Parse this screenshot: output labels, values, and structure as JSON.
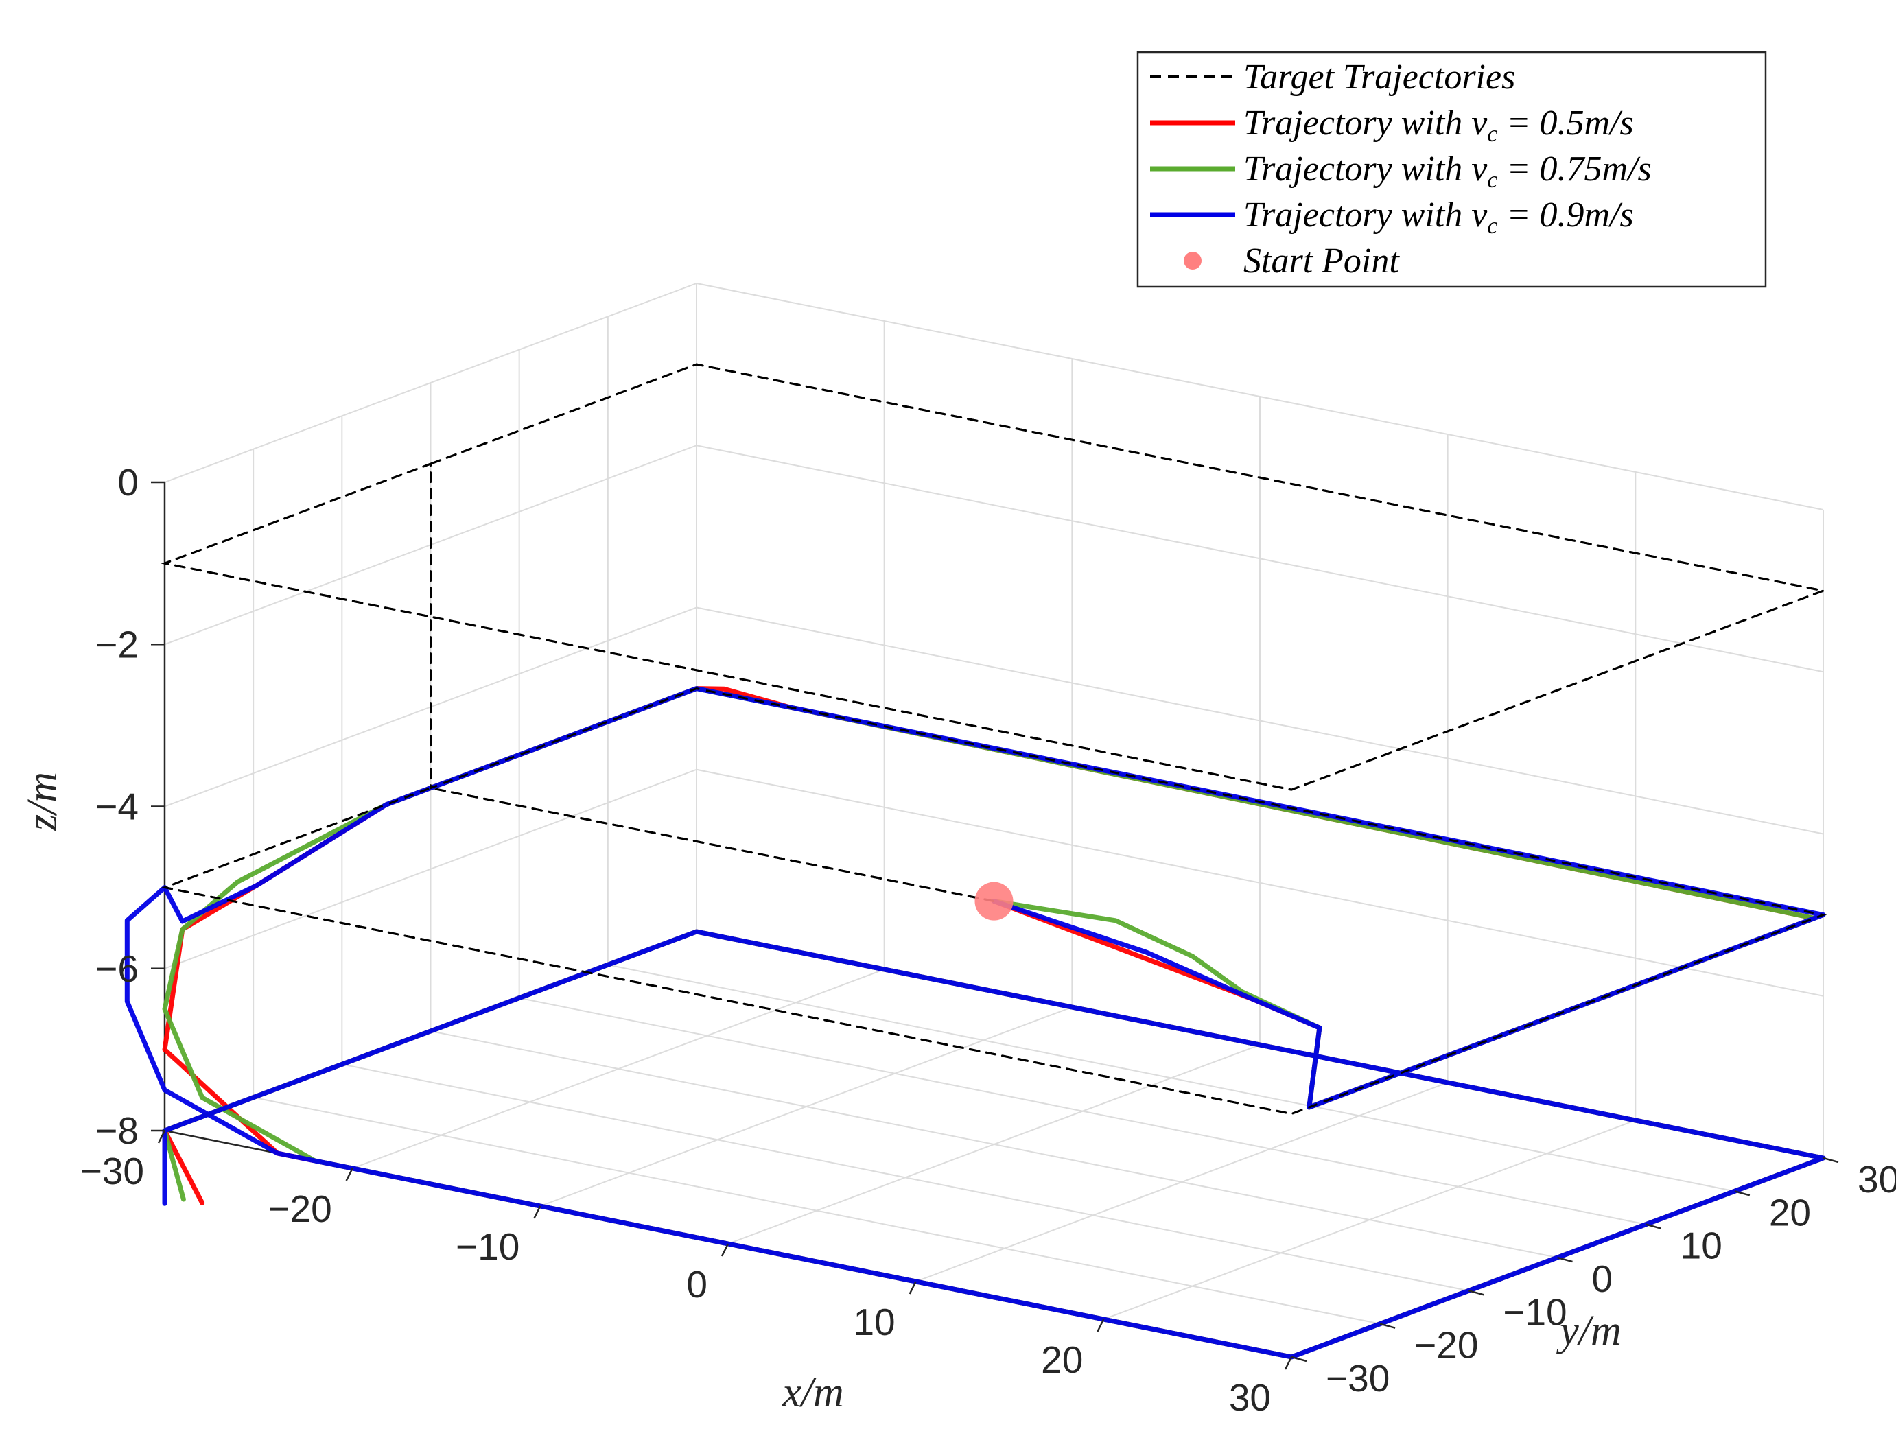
{
  "chart_data": {
    "type": "line3d",
    "xlabel": "x/m",
    "ylabel": "y/m",
    "zlabel": "z/m",
    "xlim": [
      -30,
      30
    ],
    "ylim": [
      -30,
      30
    ],
    "zlim": [
      -8,
      0
    ],
    "x_ticks": [
      "−30",
      "−20",
      "−10",
      "0",
      "10",
      "20",
      "30"
    ],
    "y_ticks": [
      "−30",
      "−20",
      "−10",
      "0",
      "10",
      "20",
      "30"
    ],
    "z_ticks": [
      "−8",
      "−6",
      "−4",
      "−2",
      "0"
    ],
    "grid": true,
    "legend_position": "top-right",
    "legend": [
      {
        "label": "Target Trajectories",
        "color": "#000000",
        "style": "dashed"
      },
      {
        "label": "Trajectory with v",
        "sub": "c",
        "eq": " = 0.5m/s",
        "color": "#ff0000",
        "style": "solid"
      },
      {
        "label": "Trajectory with v",
        "sub": "c",
        "eq": " = 0.75m/s",
        "color": "#5aab2f",
        "style": "solid"
      },
      {
        "label": "Trajectory with v",
        "sub": "c",
        "eq": " = 0.9m/s",
        "color": "#0000e6",
        "style": "solid"
      },
      {
        "label": "Start Point",
        "color": "#ff8080",
        "style": "marker"
      }
    ],
    "start_point": {
      "x": 0,
      "y": 0,
      "z": -5
    },
    "series": [
      {
        "name": "Target Trajectories",
        "color": "#000000",
        "points": [
          [
            0,
            0,
            -5
          ],
          [
            -30,
            0,
            -5
          ],
          [
            -30,
            -30,
            -5
          ],
          [
            30,
            -30,
            -5
          ],
          [
            30,
            30,
            -5
          ],
          [
            -30,
            30,
            -5
          ],
          [
            -30,
            0,
            -5
          ],
          [
            -30,
            0,
            -1
          ],
          [
            -30,
            -30,
            -1
          ],
          [
            30,
            -30,
            -1
          ],
          [
            30,
            30,
            -1
          ],
          [
            -30,
            30,
            -1
          ],
          [
            -30,
            0,
            -1
          ]
        ]
      },
      {
        "name": "Trajectory with v_c = 0.5m/s",
        "color": "#ff0000",
        "points": [
          [
            0,
            0,
            -5
          ],
          [
            10,
            -5,
            -5
          ],
          [
            18,
            -9,
            -5
          ],
          [
            23,
            -12,
            -5
          ],
          [
            30,
            -28,
            -5
          ],
          [
            30,
            29,
            -5
          ],
          [
            -25,
            30,
            -5
          ],
          [
            -29,
            31,
            -5
          ],
          [
            -30,
            30,
            -5
          ],
          [
            -30,
            -5,
            -5
          ],
          [
            -27,
            -26,
            -5
          ],
          [
            -30,
            -28,
            -5.6
          ],
          [
            -30,
            -30,
            -7
          ],
          [
            -24,
            -30,
            -8
          ],
          [
            -18,
            -30,
            -8
          ],
          [
            -10,
            -30,
            -8
          ],
          [
            0,
            -30,
            -8
          ],
          [
            20,
            -30,
            -8
          ],
          [
            30,
            -30,
            -8
          ],
          [
            30,
            30,
            -8
          ],
          [
            -30,
            30,
            -8
          ],
          [
            -30,
            -30,
            -8
          ],
          [
            -28,
            -30,
            -8.8
          ]
        ]
      },
      {
        "name": "Trajectory with v_c = 0.75m/s",
        "color": "#5aab2f",
        "points": [
          [
            0,
            0,
            -5
          ],
          [
            6,
            1,
            -5
          ],
          [
            12,
            -3,
            -5
          ],
          [
            17,
            -8,
            -5
          ],
          [
            23,
            -12,
            -5
          ],
          [
            30,
            -28,
            -5
          ],
          [
            30,
            29,
            -5
          ],
          [
            -25,
            30,
            -5
          ],
          [
            -30,
            30,
            -5
          ],
          [
            -30,
            -5,
            -5
          ],
          [
            -28,
            -26,
            -5
          ],
          [
            -30,
            -28,
            -5.6
          ],
          [
            -30,
            -30,
            -6.5
          ],
          [
            -28,
            -30,
            -7.5
          ],
          [
            -22,
            -30,
            -8
          ],
          [
            0,
            -30,
            -8
          ],
          [
            30,
            -30,
            -8
          ],
          [
            30,
            30,
            -8
          ],
          [
            -30,
            30,
            -8
          ],
          [
            -30,
            -30,
            -8
          ],
          [
            -29,
            -30,
            -8.8
          ]
        ]
      },
      {
        "name": "Trajectory with v_c = 0.9m/s",
        "color": "#0000e6",
        "points": [
          [
            0,
            0,
            -5
          ],
          [
            10,
            -4,
            -5
          ],
          [
            18,
            -9,
            -5
          ],
          [
            23,
            -12,
            -5
          ],
          [
            30,
            -28,
            -5
          ],
          [
            30,
            30,
            -5
          ],
          [
            -25,
            30,
            -5
          ],
          [
            -30,
            30,
            -5
          ],
          [
            -30,
            -5,
            -5
          ],
          [
            -27,
            -26,
            -5
          ],
          [
            -30,
            -28,
            -5.5
          ],
          [
            -30,
            -30,
            -5
          ],
          [
            -32,
            -30,
            -5.5
          ],
          [
            -32,
            -30,
            -6.5
          ],
          [
            -30,
            -30,
            -7.5
          ],
          [
            -24,
            -30,
            -8
          ],
          [
            0,
            -30,
            -8
          ],
          [
            30,
            -30,
            -8
          ],
          [
            30,
            30,
            -8
          ],
          [
            -30,
            30,
            -8
          ],
          [
            -30,
            -30,
            -8
          ],
          [
            -30,
            -30,
            -8.9
          ]
        ]
      }
    ]
  }
}
